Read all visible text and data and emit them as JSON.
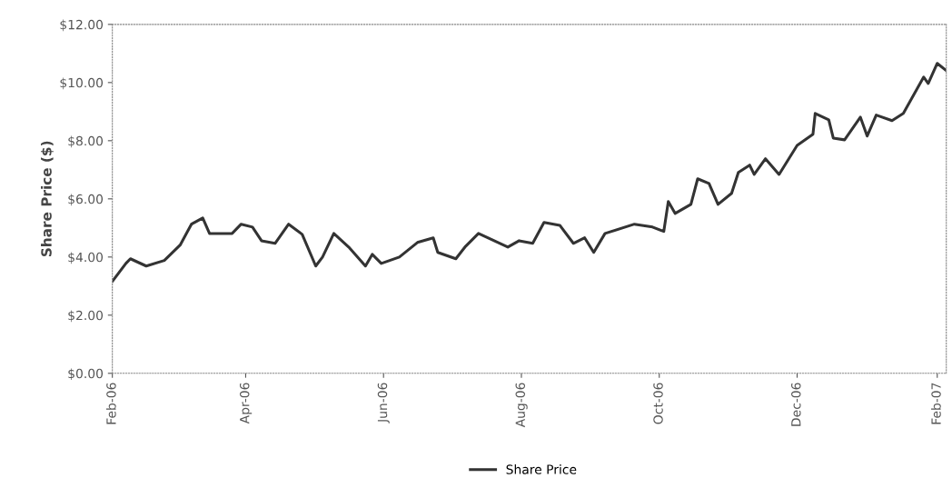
{
  "chart_data": {
    "type": "line",
    "ylabel": "Share Price ($)",
    "x": [
      "2006-02-01",
      "2006-02-07",
      "2006-02-09",
      "2006-02-16",
      "2006-02-24",
      "2006-03-03",
      "2006-03-08",
      "2006-03-13",
      "2006-03-16",
      "2006-03-26",
      "2006-03-30",
      "2006-04-04",
      "2006-04-08",
      "2006-04-14",
      "2006-04-20",
      "2006-04-26",
      "2006-05-02",
      "2006-05-05",
      "2006-05-10",
      "2006-05-17",
      "2006-05-24",
      "2006-05-27",
      "2006-05-31",
      "2006-06-08",
      "2006-06-16",
      "2006-06-23",
      "2006-06-25",
      "2006-07-03",
      "2006-07-07",
      "2006-07-13",
      "2006-07-26",
      "2006-07-31",
      "2006-08-06",
      "2006-08-11",
      "2006-08-18",
      "2006-08-24",
      "2006-08-29",
      "2006-09-02",
      "2006-09-07",
      "2006-09-20",
      "2006-09-28",
      "2006-10-03",
      "2006-10-05",
      "2006-10-08",
      "2006-10-15",
      "2006-10-18",
      "2006-10-23",
      "2006-10-27",
      "2006-11-02",
      "2006-11-05",
      "2006-11-10",
      "2006-11-12",
      "2006-11-17",
      "2006-11-23",
      "2006-12-01",
      "2006-12-08",
      "2006-12-09",
      "2006-12-15",
      "2006-12-17",
      "2006-12-22",
      "2006-12-29",
      "2007-01-01",
      "2007-01-05",
      "2007-01-12",
      "2007-01-17",
      "2007-01-26",
      "2007-01-28",
      "2007-02-01",
      "2007-02-05"
    ],
    "series": [
      {
        "name": "Share Price",
        "color": "#333333",
        "values": [
          3.16,
          3.78,
          3.94,
          3.69,
          3.88,
          4.41,
          5.13,
          5.34,
          4.81,
          4.81,
          5.13,
          5.03,
          4.56,
          4.47,
          5.13,
          4.78,
          3.69,
          4.0,
          4.81,
          4.31,
          3.69,
          4.09,
          3.78,
          4.0,
          4.5,
          4.66,
          4.16,
          3.94,
          4.34,
          4.81,
          4.34,
          4.56,
          4.47,
          5.19,
          5.09,
          4.47,
          4.66,
          4.16,
          4.81,
          5.13,
          5.03,
          4.88,
          5.91,
          5.5,
          5.81,
          6.69,
          6.53,
          5.81,
          6.19,
          6.91,
          7.16,
          6.84,
          7.38,
          6.84,
          7.84,
          8.22,
          8.94,
          8.72,
          8.09,
          8.03,
          8.81,
          8.16,
          8.88,
          8.69,
          8.94,
          10.19,
          9.97,
          10.66,
          10.41
        ]
      }
    ],
    "xlim": [
      "2006-02-01",
      "2007-02-05"
    ],
    "xticks": [
      {
        "value": "2006-02-01",
        "label": "Feb-06"
      },
      {
        "value": "2006-04-01",
        "label": "Apr-06"
      },
      {
        "value": "2006-06-01",
        "label": "Jun-06"
      },
      {
        "value": "2006-08-01",
        "label": "Aug-06"
      },
      {
        "value": "2006-10-01",
        "label": "Oct-06"
      },
      {
        "value": "2006-12-01",
        "label": "Dec-06"
      },
      {
        "value": "2007-02-01",
        "label": "Feb-07"
      }
    ],
    "ylim": [
      0,
      12
    ],
    "yticks": [
      {
        "value": 0,
        "label": "$0.00"
      },
      {
        "value": 2,
        "label": "$2.00"
      },
      {
        "value": 4,
        "label": "$4.00"
      },
      {
        "value": 6,
        "label": "$6.00"
      },
      {
        "value": 8,
        "label": "$8.00"
      },
      {
        "value": 10,
        "label": "$10.00"
      },
      {
        "value": 12,
        "label": "$12.00"
      }
    ],
    "legend": "bottom",
    "line_style": "solid"
  }
}
